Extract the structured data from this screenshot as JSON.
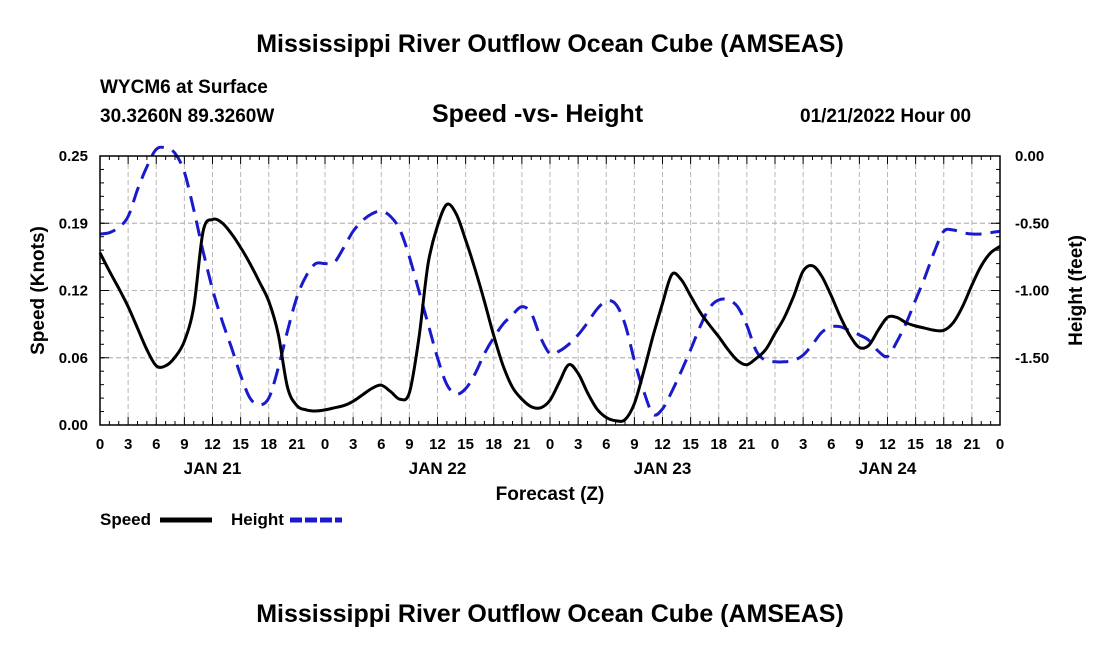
{
  "header": {
    "title": "Mississippi River Outflow Ocean Cube (AMSEAS)",
    "station": "WYCM6 at Surface",
    "coords": "30.3260N  89.3260W",
    "datetime": "01/21/2022 Hour 00"
  },
  "footer": {
    "title": "Mississippi River Outflow Ocean Cube (AMSEAS)"
  },
  "colors": {
    "speed": "#000000",
    "height": "#1a1acc",
    "grid": "#b8b8b8"
  },
  "chart_data": {
    "type": "line",
    "title": "Speed -vs- Height",
    "xlabel": "Forecast (Z)",
    "ylabel_left": "Speed (Knots)",
    "ylabel_right": "Height (feet)",
    "xlim": [
      0,
      96
    ],
    "ylim_left": [
      0,
      0.25
    ],
    "ylim_right": [
      -2.0,
      0.0
    ],
    "yticks_left": [
      "0.00",
      "0.06",
      "0.12",
      "0.19",
      "0.25"
    ],
    "yticks_left_values": [
      0,
      0.0625,
      0.125,
      0.1875,
      0.25
    ],
    "yticks_right": [
      "0.00",
      "-0.50",
      "-1.00",
      "-1.50"
    ],
    "yticks_right_values": [
      0,
      -0.5,
      -1.0,
      -1.5
    ],
    "xtick_labels": [
      "0",
      "3",
      "6",
      "9",
      "12",
      "15",
      "18",
      "21",
      "0",
      "3",
      "6",
      "9",
      "12",
      "15",
      "18",
      "21",
      "0",
      "3",
      "6",
      "9",
      "12",
      "15",
      "18",
      "21",
      "0",
      "3",
      "6",
      "9",
      "12",
      "15",
      "18",
      "21",
      "0"
    ],
    "date_labels": [
      {
        "label": "JAN 21",
        "x": 12
      },
      {
        "label": "JAN 22",
        "x": 36
      },
      {
        "label": "JAN 23",
        "x": 60
      },
      {
        "label": "JAN 24",
        "x": 84
      }
    ],
    "series": [
      {
        "name": "Speed",
        "axis": "left",
        "style": "solid",
        "x": [
          0,
          1,
          2,
          3,
          4,
          5,
          6,
          7,
          8,
          9,
          10,
          11,
          12,
          13,
          14,
          15,
          16,
          17,
          18,
          19,
          20,
          21,
          22,
          23,
          24,
          25,
          26,
          27,
          28,
          29,
          30,
          31,
          32,
          33,
          34,
          35,
          36,
          37,
          38,
          39,
          40,
          41,
          42,
          43,
          44,
          45,
          46,
          47,
          48,
          49,
          50,
          51,
          52,
          53,
          54,
          55,
          56,
          57,
          58,
          59,
          60,
          61,
          62,
          63,
          64,
          65,
          66,
          67,
          68,
          69,
          70,
          71,
          72,
          73,
          74,
          75,
          76,
          77,
          78,
          79,
          80,
          81,
          82,
          83,
          84,
          85,
          86,
          87,
          88,
          89,
          90,
          91,
          92,
          93,
          94,
          95,
          96
        ],
        "values": [
          0.16,
          0.143,
          0.127,
          0.11,
          0.09,
          0.07,
          0.055,
          0.055,
          0.063,
          0.078,
          0.11,
          0.18,
          0.191,
          0.188,
          0.178,
          0.165,
          0.15,
          0.133,
          0.115,
          0.085,
          0.035,
          0.018,
          0.014,
          0.013,
          0.014,
          0.016,
          0.018,
          0.022,
          0.028,
          0.034,
          0.037,
          0.031,
          0.024,
          0.03,
          0.08,
          0.15,
          0.185,
          0.205,
          0.196,
          0.172,
          0.145,
          0.115,
          0.083,
          0.055,
          0.035,
          0.024,
          0.017,
          0.016,
          0.023,
          0.04,
          0.056,
          0.048,
          0.03,
          0.015,
          0.007,
          0.004,
          0.005,
          0.02,
          0.05,
          0.083,
          0.113,
          0.14,
          0.135,
          0.12,
          0.105,
          0.093,
          0.082,
          0.07,
          0.06,
          0.056,
          0.062,
          0.07,
          0.085,
          0.1,
          0.12,
          0.143,
          0.148,
          0.138,
          0.12,
          0.1,
          0.083,
          0.072,
          0.074,
          0.088,
          0.1,
          0.1,
          0.095,
          0.092,
          0.09,
          0.088,
          0.088,
          0.095,
          0.11,
          0.13,
          0.148,
          0.16,
          0.166
        ]
      },
      {
        "name": "Height",
        "axis": "right",
        "style": "dashed",
        "x": [
          0,
          1,
          2,
          3,
          4,
          5,
          6,
          7,
          8,
          9,
          10,
          11,
          12,
          13,
          14,
          15,
          16,
          17,
          18,
          19,
          20,
          21,
          22,
          23,
          24,
          25,
          26,
          27,
          28,
          29,
          30,
          31,
          32,
          33,
          34,
          35,
          36,
          37,
          38,
          39,
          40,
          41,
          42,
          43,
          44,
          45,
          46,
          47,
          48,
          49,
          50,
          51,
          52,
          53,
          54,
          55,
          56,
          57,
          58,
          59,
          60,
          61,
          62,
          63,
          64,
          65,
          66,
          67,
          68,
          69,
          70,
          71,
          72,
          73,
          74,
          75,
          76,
          77,
          78,
          79,
          80,
          81,
          82,
          83,
          84,
          85,
          86,
          87,
          88,
          89,
          90,
          91,
          92,
          93,
          94,
          95,
          96
        ],
        "values": [
          -0.58,
          -0.57,
          -0.53,
          -0.45,
          -0.25,
          -0.08,
          0.05,
          0.06,
          0.02,
          -0.12,
          -0.4,
          -0.71,
          -0.99,
          -1.22,
          -1.42,
          -1.63,
          -1.8,
          -1.85,
          -1.8,
          -1.58,
          -1.3,
          -1.05,
          -0.89,
          -0.8,
          -0.8,
          -0.79,
          -0.68,
          -0.56,
          -0.48,
          -0.43,
          -0.41,
          -0.45,
          -0.55,
          -0.75,
          -1.0,
          -1.25,
          -1.5,
          -1.7,
          -1.77,
          -1.73,
          -1.62,
          -1.47,
          -1.35,
          -1.25,
          -1.18,
          -1.12,
          -1.17,
          -1.35,
          -1.47,
          -1.45,
          -1.4,
          -1.33,
          -1.24,
          -1.14,
          -1.08,
          -1.1,
          -1.25,
          -1.52,
          -1.75,
          -1.92,
          -1.88,
          -1.75,
          -1.6,
          -1.44,
          -1.27,
          -1.13,
          -1.07,
          -1.07,
          -1.12,
          -1.26,
          -1.45,
          -1.52,
          -1.53,
          -1.53,
          -1.52,
          -1.48,
          -1.4,
          -1.31,
          -1.27,
          -1.27,
          -1.3,
          -1.33,
          -1.37,
          -1.45,
          -1.49,
          -1.38,
          -1.24,
          -1.07,
          -0.9,
          -0.71,
          -0.56,
          -0.55,
          -0.57,
          -0.58,
          -0.58,
          -0.57,
          -0.56
        ]
      }
    ],
    "legend": [
      {
        "label": "Speed",
        "series": "Speed"
      },
      {
        "label": "Height",
        "series": "Height"
      }
    ],
    "legend_position": "bottom-left",
    "grid": true
  }
}
